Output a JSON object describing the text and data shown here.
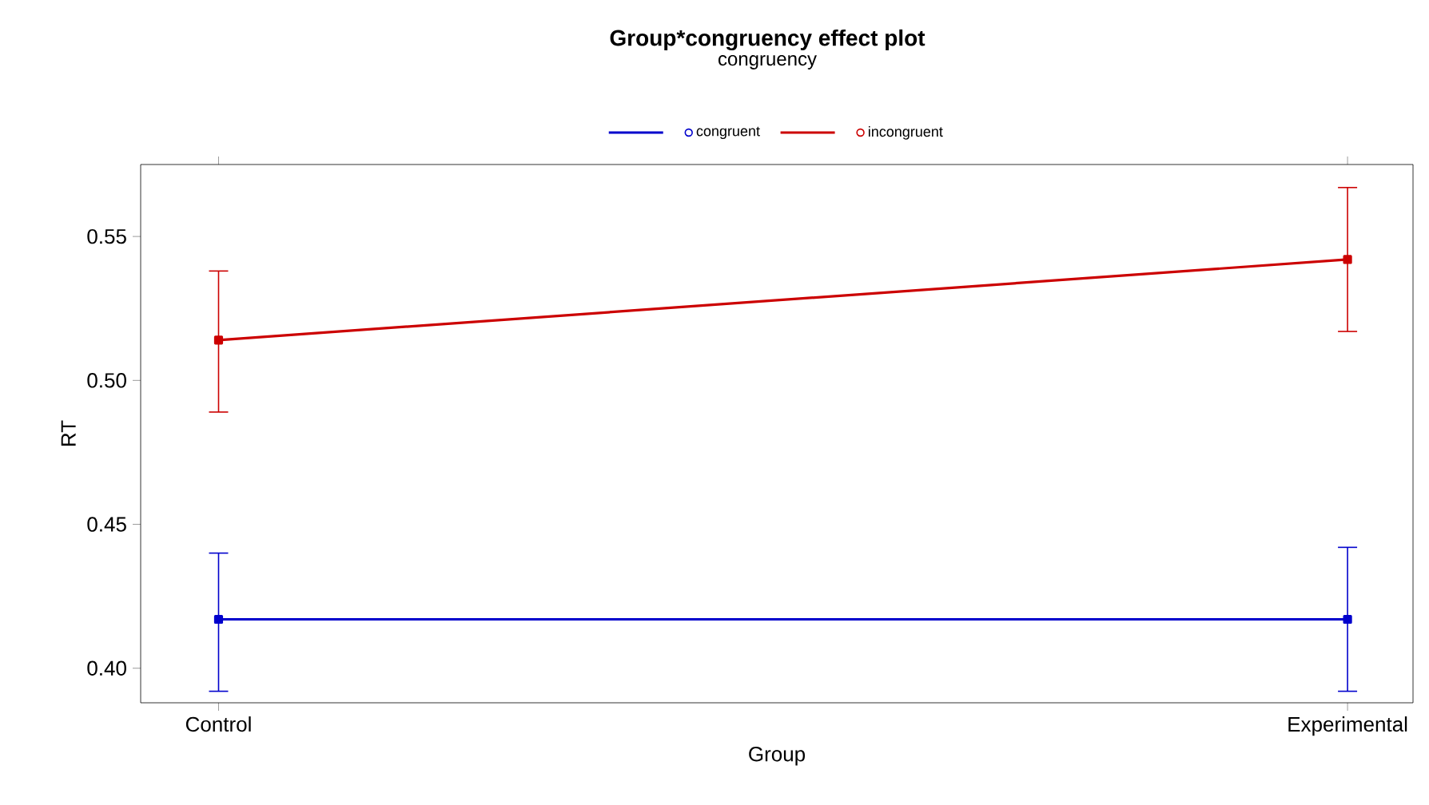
{
  "chart_data": {
    "type": "line",
    "title": "Group*congruency effect plot",
    "xlabel": "Group",
    "ylabel": "RT",
    "legend_title": "congruency",
    "categories": [
      "Control",
      "Experimental"
    ],
    "series": [
      {
        "name": "congruent",
        "color": "#0000cc",
        "values": [
          0.417,
          0.417
        ],
        "errors": [
          [
            0.392,
            0.44
          ],
          [
            0.392,
            0.442
          ]
        ]
      },
      {
        "name": "incongruent",
        "color": "#cc0000",
        "values": [
          0.514,
          0.542
        ],
        "errors": [
          [
            0.489,
            0.538
          ],
          [
            0.517,
            0.567
          ]
        ]
      }
    ],
    "ylim": [
      0.388,
      0.575
    ],
    "yticks": [
      {
        "value": 0.4,
        "label": "0.40"
      },
      0.45,
      {
        "value": 0.5,
        "label": "0.50"
      },
      0.55
    ],
    "legend": "top",
    "marker": "square",
    "line_style": "solid",
    "grid": false
  }
}
